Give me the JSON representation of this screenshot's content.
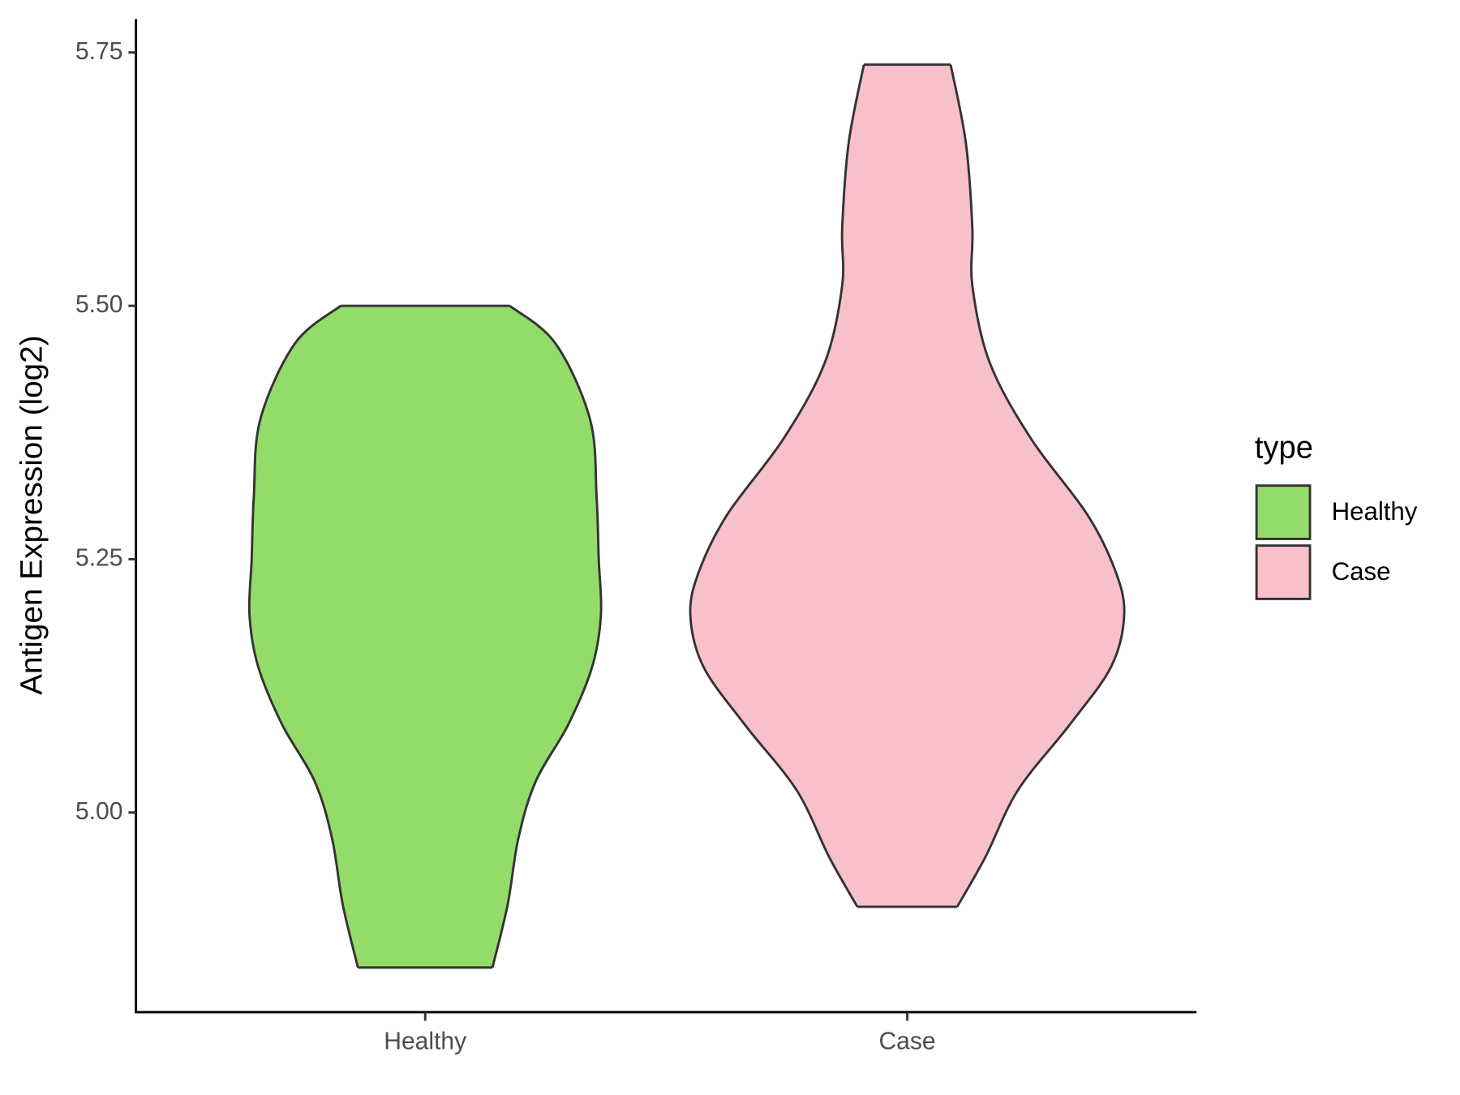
{
  "chart_data": {
    "type": "violin",
    "ylabel": "Antigen Expression (log2)",
    "legend_title": "type",
    "categories": [
      "Healthy",
      "Case"
    ],
    "ylim": [
      4.803,
      5.783
    ],
    "yticks": [
      {
        "value": 5.0,
        "label": "5.00"
      },
      {
        "value": 5.25,
        "label": "5.25"
      },
      {
        "value": 5.5,
        "label": "5.50"
      },
      {
        "value": 5.75,
        "label": "5.75"
      }
    ],
    "series": [
      {
        "name": "Healthy",
        "color": "#93dc6a",
        "y": [
          5.5,
          5.463,
          5.388,
          5.312,
          5.25,
          5.195,
          5.144,
          5.087,
          5.031,
          4.975,
          4.909,
          4.847
        ],
        "density": [
          0.39,
          0.6,
          0.76,
          0.79,
          0.8,
          0.81,
          0.77,
          0.66,
          0.51,
          0.43,
          0.38,
          0.31
        ]
      },
      {
        "name": "Case",
        "color": "#f7c0cb",
        "y": [
          5.738,
          5.661,
          5.577,
          5.52,
          5.444,
          5.369,
          5.294,
          5.238,
          5.195,
          5.144,
          5.087,
          5.022,
          4.956,
          4.907
        ],
        "density": [
          0.2,
          0.27,
          0.3,
          0.3,
          0.38,
          0.57,
          0.83,
          0.96,
          1.0,
          0.94,
          0.75,
          0.51,
          0.36,
          0.23
        ]
      }
    ]
  }
}
